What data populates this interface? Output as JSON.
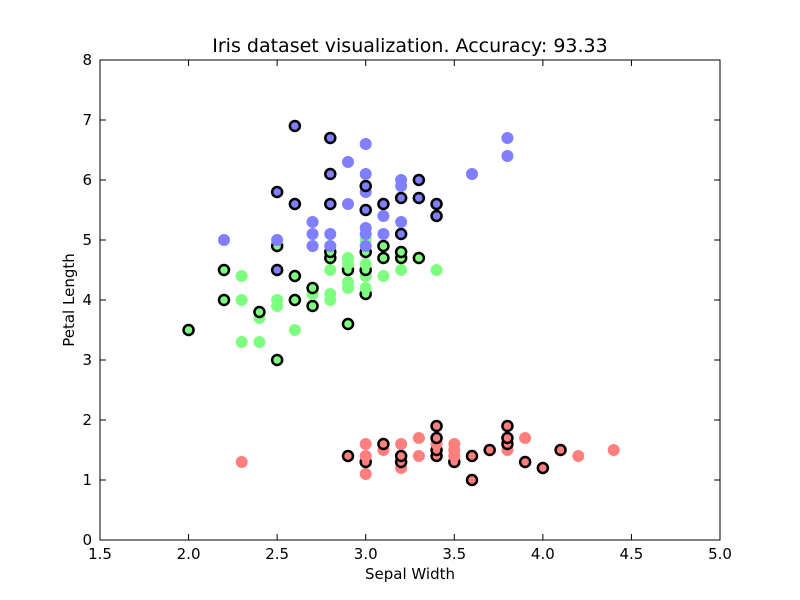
{
  "chart_data": {
    "type": "scatter",
    "title": "Iris dataset visualization. Accuracy: 93.33",
    "xlabel": "Sepal Width",
    "ylabel": "Petal Length",
    "xlim": [
      1.5,
      5.0
    ],
    "ylim": [
      0,
      8
    ],
    "xticks": [
      "1.5",
      "2.0",
      "2.5",
      "3.0",
      "3.5",
      "4.0",
      "4.5",
      "5.0"
    ],
    "yticks": [
      "0",
      "1",
      "2",
      "3",
      "4",
      "5",
      "6",
      "7",
      "8"
    ],
    "grid": false,
    "legend": "none",
    "outline_color": "#000000",
    "series": [
      {
        "color": "#ff7f7f",
        "points": [
          {
            "x": 2.3,
            "y": 1.3
          },
          {
            "x": 2.9,
            "y": 1.4,
            "o": true
          },
          {
            "x": 3.0,
            "y": 1.1
          },
          {
            "x": 3.0,
            "y": 1.3,
            "o": true
          },
          {
            "x": 3.0,
            "y": 1.4
          },
          {
            "x": 3.0,
            "y": 1.6
          },
          {
            "x": 3.1,
            "y": 1.5
          },
          {
            "x": 3.1,
            "y": 1.6,
            "o": true
          },
          {
            "x": 3.2,
            "y": 1.2
          },
          {
            "x": 3.2,
            "y": 1.3,
            "o": true
          },
          {
            "x": 3.2,
            "y": 1.4,
            "o": true
          },
          {
            "x": 3.2,
            "y": 1.6
          },
          {
            "x": 3.3,
            "y": 1.4
          },
          {
            "x": 3.3,
            "y": 1.7
          },
          {
            "x": 3.4,
            "y": 1.4,
            "o": true
          },
          {
            "x": 3.4,
            "y": 1.5,
            "o": true
          },
          {
            "x": 3.4,
            "y": 1.6
          },
          {
            "x": 3.4,
            "y": 1.7,
            "o": true
          },
          {
            "x": 3.4,
            "y": 1.9,
            "o": true
          },
          {
            "x": 3.5,
            "y": 1.3,
            "o": true
          },
          {
            "x": 3.5,
            "y": 1.4
          },
          {
            "x": 3.5,
            "y": 1.5
          },
          {
            "x": 3.5,
            "y": 1.6
          },
          {
            "x": 3.6,
            "y": 1.0,
            "o": true
          },
          {
            "x": 3.6,
            "y": 1.4,
            "o": true
          },
          {
            "x": 3.7,
            "y": 1.5,
            "o": true
          },
          {
            "x": 3.8,
            "y": 1.5
          },
          {
            "x": 3.8,
            "y": 1.6,
            "o": true
          },
          {
            "x": 3.8,
            "y": 1.7,
            "o": true
          },
          {
            "x": 3.8,
            "y": 1.9,
            "o": true
          },
          {
            "x": 3.9,
            "y": 1.3,
            "o": true
          },
          {
            "x": 3.9,
            "y": 1.7
          },
          {
            "x": 4.0,
            "y": 1.2,
            "o": true
          },
          {
            "x": 4.1,
            "y": 1.5,
            "o": true
          },
          {
            "x": 4.2,
            "y": 1.4
          },
          {
            "x": 4.4,
            "y": 1.5
          }
        ]
      },
      {
        "color": "#7fff7f",
        "points": [
          {
            "x": 2.0,
            "y": 3.5,
            "o": true
          },
          {
            "x": 2.2,
            "y": 4.0,
            "o": true
          },
          {
            "x": 2.2,
            "y": 4.5,
            "o": true
          },
          {
            "x": 2.3,
            "y": 3.3
          },
          {
            "x": 2.3,
            "y": 4.0
          },
          {
            "x": 2.3,
            "y": 4.4
          },
          {
            "x": 2.4,
            "y": 3.3
          },
          {
            "x": 2.4,
            "y": 3.7
          },
          {
            "x": 2.4,
            "y": 3.8,
            "o": true
          },
          {
            "x": 2.5,
            "y": 3.0,
            "o": true
          },
          {
            "x": 2.5,
            "y": 3.9
          },
          {
            "x": 2.5,
            "y": 4.0
          },
          {
            "x": 2.5,
            "y": 4.9,
            "o": true
          },
          {
            "x": 2.5,
            "y": 5.0
          },
          {
            "x": 2.6,
            "y": 3.5
          },
          {
            "x": 2.6,
            "y": 4.0,
            "o": true
          },
          {
            "x": 2.6,
            "y": 4.4,
            "o": true
          },
          {
            "x": 2.7,
            "y": 3.9,
            "o": true
          },
          {
            "x": 2.7,
            "y": 4.1
          },
          {
            "x": 2.7,
            "y": 4.2,
            "o": true
          },
          {
            "x": 2.7,
            "y": 4.9
          },
          {
            "x": 2.8,
            "y": 4.0
          },
          {
            "x": 2.8,
            "y": 4.1
          },
          {
            "x": 2.8,
            "y": 4.5
          },
          {
            "x": 2.8,
            "y": 4.7,
            "o": true
          },
          {
            "x": 2.8,
            "y": 4.8,
            "o": true
          },
          {
            "x": 2.8,
            "y": 4.9
          },
          {
            "x": 2.9,
            "y": 3.6,
            "o": true
          },
          {
            "x": 2.9,
            "y": 4.2
          },
          {
            "x": 2.9,
            "y": 4.3
          },
          {
            "x": 2.9,
            "y": 4.5,
            "o": true
          },
          {
            "x": 2.9,
            "y": 4.6
          },
          {
            "x": 2.9,
            "y": 4.7
          },
          {
            "x": 3.0,
            "y": 4.1,
            "o": true
          },
          {
            "x": 3.0,
            "y": 4.2
          },
          {
            "x": 3.0,
            "y": 4.4
          },
          {
            "x": 3.0,
            "y": 4.5,
            "o": true
          },
          {
            "x": 3.0,
            "y": 4.6
          },
          {
            "x": 3.0,
            "y": 4.8,
            "o": true
          },
          {
            "x": 3.0,
            "y": 5.0
          },
          {
            "x": 3.1,
            "y": 4.4
          },
          {
            "x": 3.1,
            "y": 4.7,
            "o": true
          },
          {
            "x": 3.1,
            "y": 4.9,
            "o": true
          },
          {
            "x": 3.2,
            "y": 4.5
          },
          {
            "x": 3.2,
            "y": 4.7,
            "o": true
          },
          {
            "x": 3.2,
            "y": 4.8,
            "o": true
          },
          {
            "x": 3.3,
            "y": 4.7,
            "o": true
          },
          {
            "x": 3.4,
            "y": 4.5
          }
        ]
      },
      {
        "color": "#7f7fff",
        "points": [
          {
            "x": 2.2,
            "y": 5.0
          },
          {
            "x": 2.5,
            "y": 4.5,
            "o": true
          },
          {
            "x": 2.5,
            "y": 5.0
          },
          {
            "x": 2.5,
            "y": 5.8,
            "o": true
          },
          {
            "x": 2.6,
            "y": 5.6,
            "o": true
          },
          {
            "x": 2.6,
            "y": 6.9,
            "o": true
          },
          {
            "x": 2.7,
            "y": 4.9
          },
          {
            "x": 2.7,
            "y": 5.1
          },
          {
            "x": 2.7,
            "y": 5.3
          },
          {
            "x": 2.8,
            "y": 4.9
          },
          {
            "x": 2.8,
            "y": 5.1
          },
          {
            "x": 2.8,
            "y": 5.6,
            "o": true
          },
          {
            "x": 2.8,
            "y": 6.1,
            "o": true
          },
          {
            "x": 2.8,
            "y": 6.7,
            "o": true
          },
          {
            "x": 2.9,
            "y": 5.6
          },
          {
            "x": 2.9,
            "y": 6.3
          },
          {
            "x": 3.0,
            "y": 4.9
          },
          {
            "x": 3.0,
            "y": 5.1
          },
          {
            "x": 3.0,
            "y": 5.2
          },
          {
            "x": 3.0,
            "y": 5.5,
            "o": true
          },
          {
            "x": 3.0,
            "y": 5.8
          },
          {
            "x": 3.0,
            "y": 5.9,
            "o": true
          },
          {
            "x": 3.0,
            "y": 6.1
          },
          {
            "x": 3.0,
            "y": 6.6
          },
          {
            "x": 3.1,
            "y": 5.1
          },
          {
            "x": 3.1,
            "y": 5.4
          },
          {
            "x": 3.1,
            "y": 5.6,
            "o": true
          },
          {
            "x": 3.2,
            "y": 5.1,
            "o": true
          },
          {
            "x": 3.2,
            "y": 5.3
          },
          {
            "x": 3.2,
            "y": 5.7,
            "o": true
          },
          {
            "x": 3.2,
            "y": 5.9
          },
          {
            "x": 3.2,
            "y": 6.0
          },
          {
            "x": 3.3,
            "y": 5.7,
            "o": true
          },
          {
            "x": 3.3,
            "y": 6.0,
            "o": true
          },
          {
            "x": 3.4,
            "y": 5.4,
            "o": true
          },
          {
            "x": 3.4,
            "y": 5.6,
            "o": true
          },
          {
            "x": 3.6,
            "y": 6.1
          },
          {
            "x": 3.8,
            "y": 6.4
          },
          {
            "x": 3.8,
            "y": 6.7
          }
        ]
      }
    ]
  }
}
